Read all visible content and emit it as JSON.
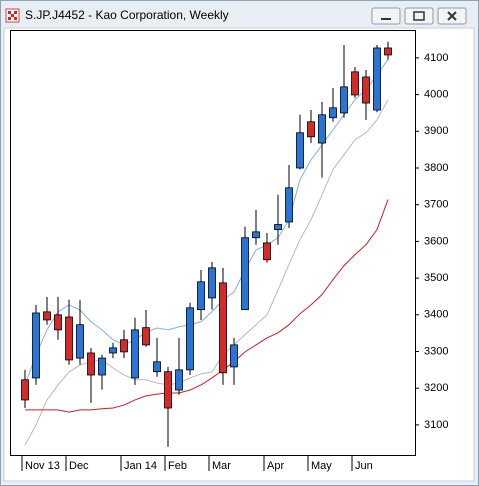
{
  "chart_data": {
    "type": "candlestick",
    "title": "S.JP.J4452 - Kao Corporation, Weekly",
    "categories": [
      "Nov 13",
      null,
      null,
      null,
      "Dec",
      null,
      null,
      null,
      null,
      "Jan 14",
      null,
      null,
      null,
      "Feb",
      null,
      null,
      null,
      "Mar",
      null,
      null,
      null,
      null,
      "Apr",
      null,
      null,
      null,
      "May",
      null,
      null,
      null,
      "Jun",
      null,
      null,
      null
    ],
    "open": [
      3223,
      3228,
      3408,
      3400,
      3394,
      3282,
      3296,
      3236,
      3296,
      3332,
      3228,
      3365,
      3245,
      3245,
      3195,
      3250,
      3414,
      3446,
      3487,
      3258,
      3414,
      3610,
      3596,
      3632,
      3653,
      3800,
      3926,
      3868,
      3937,
      3950,
      4062,
      4048,
      3958,
      4127
    ],
    "high": [
      3250,
      3427,
      3449,
      3449,
      3441,
      3441,
      3310,
      3291,
      3324,
      3359,
      3392,
      3413,
      3337,
      3258,
      3337,
      3433,
      3522,
      3544,
      3528,
      3337,
      3640,
      3686,
      3623,
      3727,
      3808,
      3945,
      3958,
      3980,
      4018,
      4135,
      4075,
      4067,
      4135,
      4144
    ],
    "low": [
      3146,
      3209,
      3373,
      3332,
      3264,
      3264,
      3160,
      3196,
      3282,
      3282,
      3209,
      3313,
      3231,
      3040,
      3182,
      3236,
      3386,
      3414,
      3209,
      3209,
      3414,
      3591,
      3542,
      3591,
      3637,
      3796,
      3868,
      3774,
      3926,
      3937,
      3991,
      3931,
      3952,
      4095
    ],
    "close": [
      3168,
      3405,
      3386,
      3359,
      3277,
      3373,
      3236,
      3282,
      3310,
      3299,
      3359,
      3318,
      3272,
      3146,
      3250,
      3419,
      3490,
      3528,
      3242,
      3318,
      3610,
      3626,
      3550,
      3646,
      3746,
      3896,
      3885,
      3945,
      3964,
      4021,
      3999,
      3977,
      4127,
      4108
    ],
    "up_color": "#2a74d8",
    "down_color": "#d42a2a",
    "series": [
      {
        "color": "#7fb0e8",
        "values": [
          3209,
          3291,
          3359,
          3408,
          3427,
          3413,
          3381,
          3359,
          3332,
          3318,
          3332,
          3353,
          3364,
          3359,
          3367,
          3373,
          3381,
          3408,
          3441,
          3462,
          3522,
          3577,
          3590,
          3610,
          3659,
          3768,
          3822,
          3863,
          3904,
          3945,
          3986,
          4013,
          4054,
          4095
        ]
      },
      {
        "color": "#b8b8b8",
        "values": [
          3045,
          3100,
          3168,
          3209,
          3244,
          3263,
          3272,
          3277,
          3255,
          3236,
          3223,
          3223,
          3214,
          3209,
          3214,
          3228,
          3239,
          3244,
          3291,
          3318,
          3346,
          3373,
          3400,
          3468,
          3537,
          3605,
          3659,
          3727,
          3796,
          3836,
          3877,
          3896,
          3931,
          3986
        ]
      },
      {
        "color": "#d41c1c",
        "values": [
          3141,
          3141,
          3141,
          3141,
          3135,
          3141,
          3141,
          3144,
          3146,
          3154,
          3168,
          3179,
          3184,
          3187,
          3187,
          3195,
          3209,
          3228,
          3250,
          3272,
          3299,
          3318,
          3337,
          3351,
          3373,
          3403,
          3427,
          3455,
          3496,
          3534,
          3564,
          3591,
          3632,
          3714
        ]
      }
    ],
    "ylim": [
      3018,
      4176
    ],
    "yticks": [
      3100,
      3200,
      3300,
      3400,
      3500,
      3600,
      3700,
      3800,
      3900,
      4000,
      4100
    ],
    "grid": false
  }
}
